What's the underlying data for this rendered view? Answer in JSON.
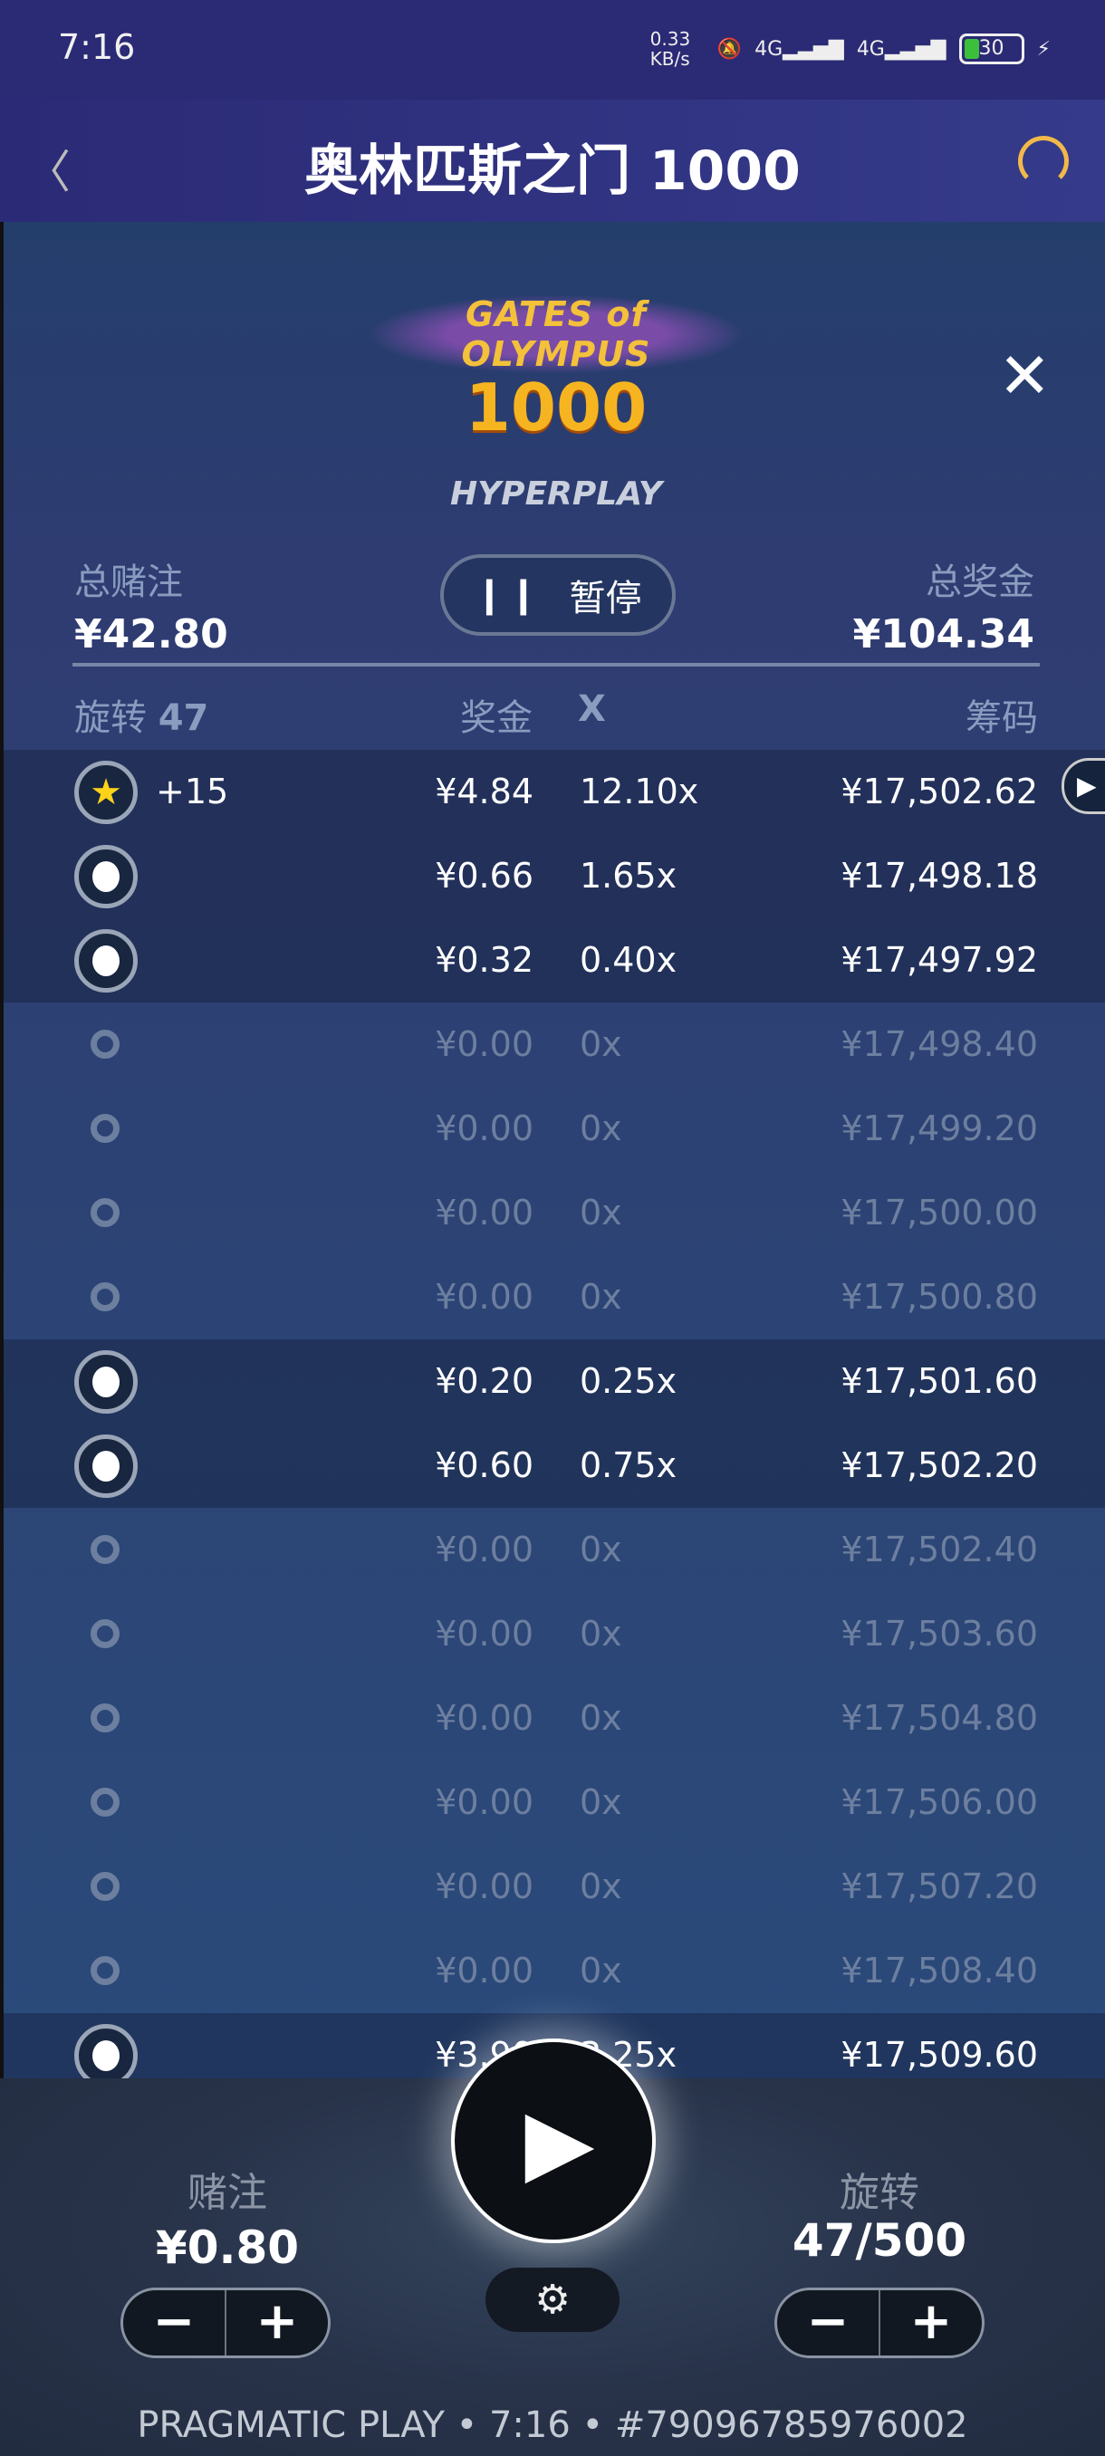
{
  "status_bar": {
    "time": "7:16",
    "net_speed": "0.33 KB/s",
    "signal1": "4G",
    "signal2": "4G",
    "battery": "30"
  },
  "header": {
    "title": "奥林匹斯之门 1000"
  },
  "game": {
    "logo_line1": "GATES of OLYMPUS",
    "logo_line2": "1000",
    "mode": "HYPERPLAY"
  },
  "summary": {
    "total_bet_label": "总赌注",
    "total_bet": "¥42.80",
    "total_win_label": "总奖金",
    "total_win": "¥104.34",
    "pause_label": "暂停"
  },
  "columns": {
    "spins_label": "旋转",
    "spins_count": "47",
    "prize": "奖金",
    "mult": "X",
    "chips": "筹码"
  },
  "rows": [
    {
      "icon": "star",
      "extra": "+15",
      "prize": "¥4.84",
      "mult": "12.10x",
      "chips": "¥17,502.62",
      "active": true
    },
    {
      "icon": "dot",
      "extra": "",
      "prize": "¥0.66",
      "mult": "1.65x",
      "chips": "¥17,498.18",
      "active": true
    },
    {
      "icon": "dot",
      "extra": "",
      "prize": "¥0.32",
      "mult": "0.40x",
      "chips": "¥17,497.92",
      "active": true
    },
    {
      "icon": "small",
      "extra": "",
      "prize": "¥0.00",
      "mult": "0x",
      "chips": "¥17,498.40",
      "active": false
    },
    {
      "icon": "small",
      "extra": "",
      "prize": "¥0.00",
      "mult": "0x",
      "chips": "¥17,499.20",
      "active": false
    },
    {
      "icon": "small",
      "extra": "",
      "prize": "¥0.00",
      "mult": "0x",
      "chips": "¥17,500.00",
      "active": false
    },
    {
      "icon": "small",
      "extra": "",
      "prize": "¥0.00",
      "mult": "0x",
      "chips": "¥17,500.80",
      "active": false
    },
    {
      "icon": "dot",
      "extra": "",
      "prize": "¥0.20",
      "mult": "0.25x",
      "chips": "¥17,501.60",
      "active": true
    },
    {
      "icon": "dot",
      "extra": "",
      "prize": "¥0.60",
      "mult": "0.75x",
      "chips": "¥17,502.20",
      "active": true
    },
    {
      "icon": "small",
      "extra": "",
      "prize": "¥0.00",
      "mult": "0x",
      "chips": "¥17,502.40",
      "active": false
    },
    {
      "icon": "small",
      "extra": "",
      "prize": "¥0.00",
      "mult": "0x",
      "chips": "¥17,503.60",
      "active": false
    },
    {
      "icon": "small",
      "extra": "",
      "prize": "¥0.00",
      "mult": "0x",
      "chips": "¥17,504.80",
      "active": false
    },
    {
      "icon": "small",
      "extra": "",
      "prize": "¥0.00",
      "mult": "0x",
      "chips": "¥17,506.00",
      "active": false
    },
    {
      "icon": "small",
      "extra": "",
      "prize": "¥0.00",
      "mult": "0x",
      "chips": "¥17,507.20",
      "active": false
    },
    {
      "icon": "small",
      "extra": "",
      "prize": "¥0.00",
      "mult": "0x",
      "chips": "¥17,508.40",
      "active": false
    },
    {
      "icon": "dot",
      "extra": "",
      "prize": "¥3.90",
      "mult": "3.25x",
      "chips": "¥17,509.60",
      "active": true
    }
  ],
  "controls": {
    "bet_label": "赌注",
    "bet_value": "¥0.80",
    "spins_label": "旋转",
    "spins_value": "47/500",
    "minus": "−",
    "plus": "+"
  },
  "footer": {
    "text": "PRAGMATIC PLAY • 7:16 • #79096785976002"
  },
  "colors": {
    "accent_star": "#ffd21a",
    "header_bg": "#2b2a75",
    "support_icon": "#f2b94a"
  }
}
